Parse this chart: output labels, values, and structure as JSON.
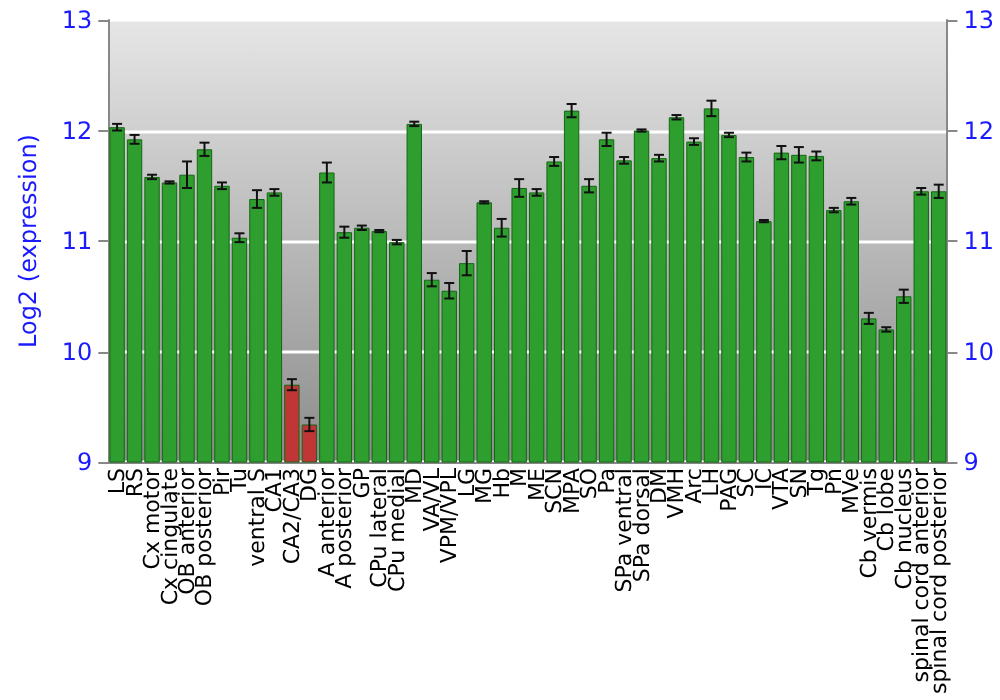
{
  "chart_data": {
    "type": "bar",
    "ylabel": "Log2 (expression)",
    "categories": [
      "LS",
      "RS",
      "Cx motor",
      "Cx cingulate",
      "OB anterior",
      "OB posterior",
      "Pir",
      "Tu",
      "ventral S",
      "CA1",
      "CA2/CA3",
      "DG",
      "A anterior",
      "A posterior",
      "GP",
      "CPu lateral",
      "CPu medial",
      "MD",
      "VA/VL",
      "VPM/VPL",
      "LG",
      "MG",
      "Hb",
      "M",
      "ME",
      "SCN",
      "MPA",
      "SO",
      "Pa",
      "SPa ventral",
      "SPa dorsal",
      "DM",
      "VMH",
      "Arc",
      "LH",
      "PAG",
      "SC",
      "IC",
      "VTA",
      "SN",
      "Tg",
      "Pn",
      "MVe",
      "Cb vermis",
      "Cb lobe",
      "Cb nucleus",
      "spinal cord anterior",
      "spinal cord posterior"
    ],
    "values": [
      12.03,
      11.92,
      11.58,
      11.53,
      11.6,
      11.83,
      11.5,
      11.03,
      11.38,
      11.44,
      9.7,
      9.34,
      11.62,
      11.08,
      11.12,
      11.09,
      10.99,
      12.06,
      10.65,
      10.55,
      10.8,
      11.35,
      11.12,
      11.48,
      11.44,
      11.72,
      12.18,
      11.5,
      11.92,
      11.73,
      12.0,
      11.75,
      12.12,
      11.9,
      12.2,
      11.96,
      11.76,
      11.18,
      11.8,
      11.78,
      11.77,
      11.28,
      11.36,
      10.3,
      10.2,
      10.5,
      11.45,
      11.45
    ],
    "errors": [
      0.03,
      0.04,
      0.02,
      0.01,
      0.12,
      0.06,
      0.03,
      0.04,
      0.08,
      0.03,
      0.05,
      0.06,
      0.09,
      0.05,
      0.02,
      0.01,
      0.02,
      0.02,
      0.06,
      0.07,
      0.11,
      0.01,
      0.08,
      0.08,
      0.03,
      0.04,
      0.06,
      0.06,
      0.06,
      0.03,
      0.01,
      0.03,
      0.02,
      0.03,
      0.07,
      0.02,
      0.04,
      0.01,
      0.06,
      0.07,
      0.04,
      0.02,
      0.03,
      0.05,
      0.02,
      0.06,
      0.03,
      0.06
    ],
    "colors": [
      "#2e9e2e",
      "#2e9e2e",
      "#2e9e2e",
      "#2e9e2e",
      "#2e9e2e",
      "#2e9e2e",
      "#2e9e2e",
      "#2e9e2e",
      "#2e9e2e",
      "#2e9e2e",
      "#c03636",
      "#c03636",
      "#2e9e2e",
      "#2e9e2e",
      "#2e9e2e",
      "#2e9e2e",
      "#2e9e2e",
      "#2e9e2e",
      "#2e9e2e",
      "#2e9e2e",
      "#2e9e2e",
      "#2e9e2e",
      "#2e9e2e",
      "#2e9e2e",
      "#2e9e2e",
      "#2e9e2e",
      "#2e9e2e",
      "#2e9e2e",
      "#2e9e2e",
      "#2e9e2e",
      "#2e9e2e",
      "#2e9e2e",
      "#2e9e2e",
      "#2e9e2e",
      "#2e9e2e",
      "#2e9e2e",
      "#2e9e2e",
      "#2e9e2e",
      "#2e9e2e",
      "#2e9e2e",
      "#2e9e2e",
      "#2e9e2e",
      "#2e9e2e",
      "#2e9e2e",
      "#2e9e2e",
      "#2e9e2e",
      "#2e9e2e",
      "#2e9e2e"
    ],
    "ylim": [
      9,
      13
    ],
    "yticks": [
      9,
      10,
      11,
      12,
      13
    ],
    "y2lim": [
      9,
      13
    ],
    "y2ticks": [
      9,
      10,
      11,
      12,
      13
    ],
    "grid": "y"
  }
}
